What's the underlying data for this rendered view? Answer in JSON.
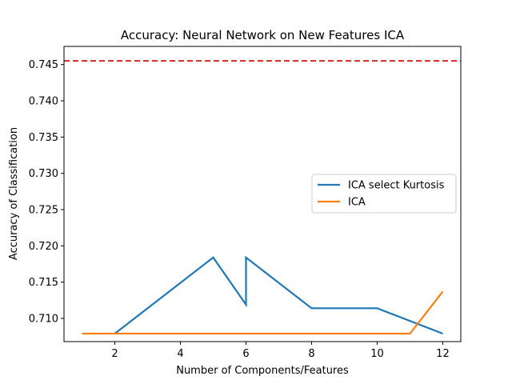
{
  "chart_data": {
    "type": "line",
    "title": "Accuracy: Neural Network on New Features ICA",
    "xlabel": "Number of Components/Features",
    "ylabel": "Accuracy of Classification",
    "xlim": [
      0.45,
      12.55
    ],
    "ylim": [
      0.7068,
      0.7475
    ],
    "x_ticks": [
      2,
      4,
      6,
      8,
      10,
      12
    ],
    "y_ticks": [
      0.71,
      0.715,
      0.72,
      0.725,
      0.73,
      0.735,
      0.74,
      0.745
    ],
    "grid": false,
    "legend_position": "center-right",
    "series": [
      {
        "name": "ICA select Kurtosis",
        "color": "#1f77b4",
        "points": [
          [
            2,
            0.7079
          ],
          [
            5,
            0.7184
          ],
          [
            6,
            0.7119
          ],
          [
            6,
            0.7184
          ],
          [
            8,
            0.7114
          ],
          [
            10,
            0.7114
          ],
          [
            12,
            0.7079
          ]
        ]
      },
      {
        "name": "ICA",
        "color": "#ff7f0e",
        "points": [
          [
            1,
            0.7079
          ],
          [
            2,
            0.7079
          ],
          [
            3,
            0.7079
          ],
          [
            4,
            0.7079
          ],
          [
            5,
            0.7079
          ],
          [
            6,
            0.7079
          ],
          [
            7,
            0.7079
          ],
          [
            8,
            0.7079
          ],
          [
            9,
            0.7079
          ],
          [
            10,
            0.7079
          ],
          [
            11,
            0.7079
          ],
          [
            12,
            0.7137
          ]
        ]
      }
    ],
    "reference_lines": [
      {
        "y": 0.7455,
        "color": "#d62728",
        "style": "dashed"
      }
    ]
  }
}
